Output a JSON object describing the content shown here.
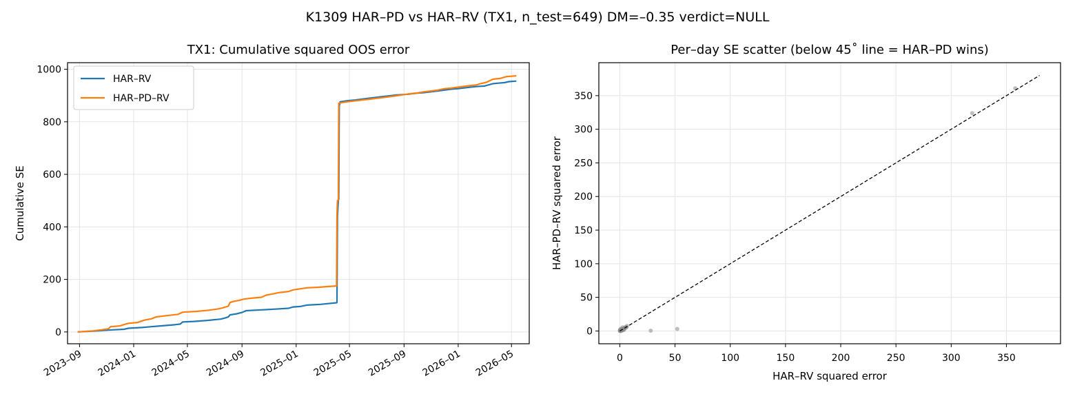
{
  "suptitle": "K1309 HAR–PD vs HAR–RV (TX1, n_test=649)  DM=–0.35  verdict=NULL",
  "chart_data": [
    {
      "type": "line",
      "title": "TX1: Cumulative squared OOS error",
      "xlabel": "",
      "ylabel": "Cumulative SE",
      "x_tick_labels": [
        "2023–09",
        "2024–01",
        "2024–05",
        "2024–09",
        "2025–01",
        "2025–05",
        "2025–09",
        "2026–01",
        "2026–05"
      ],
      "y_ticks": [
        0,
        200,
        400,
        600,
        800,
        1000
      ],
      "xlim": [
        "2023-08-05",
        "2026-06-10"
      ],
      "ylim": [
        -45,
        1025
      ],
      "grid": true,
      "legend": "top-left",
      "series": [
        {
          "name": "HAR–RV",
          "color": "#1f77b4",
          "points": [
            [
              "2023-08-28",
              0
            ],
            [
              "2023-10-01",
              3
            ],
            [
              "2023-11-15",
              8
            ],
            [
              "2023-12-10",
              10
            ],
            [
              "2023-12-20",
              14
            ],
            [
              "2024-01-20",
              17
            ],
            [
              "2024-02-10",
              20
            ],
            [
              "2024-03-01",
              23
            ],
            [
              "2024-04-01",
              27
            ],
            [
              "2024-04-15",
              30
            ],
            [
              "2024-04-20",
              38
            ],
            [
              "2024-05-15",
              40
            ],
            [
              "2024-06-15",
              44
            ],
            [
              "2024-07-15",
              49
            ],
            [
              "2024-07-25",
              53
            ],
            [
              "2024-08-01",
              57
            ],
            [
              "2024-08-05",
              65
            ],
            [
              "2024-08-20",
              69
            ],
            [
              "2024-09-01",
              74
            ],
            [
              "2024-09-10",
              81
            ],
            [
              "2024-10-15",
              84
            ],
            [
              "2024-11-15",
              87
            ],
            [
              "2024-12-15",
              90
            ],
            [
              "2024-12-25",
              95
            ],
            [
              "2025-01-10",
              97
            ],
            [
              "2025-01-25",
              102
            ],
            [
              "2025-02-25",
              105
            ],
            [
              "2025-03-20",
              109
            ],
            [
              "2025-04-02",
              111
            ],
            [
              "2025-04-03",
              112
            ],
            [
              "2025-04-04",
              440
            ],
            [
              "2025-04-06",
              500
            ],
            [
              "2025-04-07",
              505
            ],
            [
              "2025-04-08",
              860
            ],
            [
              "2025-04-10",
              876
            ],
            [
              "2025-04-25",
              880
            ],
            [
              "2025-05-15",
              883
            ],
            [
              "2025-06-15",
              890
            ],
            [
              "2025-07-15",
              896
            ],
            [
              "2025-08-15",
              902
            ],
            [
              "2025-09-10",
              905
            ],
            [
              "2025-10-01",
              909
            ],
            [
              "2025-10-15",
              911
            ],
            [
              "2025-11-15",
              917
            ],
            [
              "2025-12-15",
              924
            ],
            [
              "2026-01-01",
              926
            ],
            [
              "2026-01-20",
              930
            ],
            [
              "2026-02-10",
              934
            ],
            [
              "2026-03-01",
              936
            ],
            [
              "2026-03-20",
              945
            ],
            [
              "2026-04-01",
              947
            ],
            [
              "2026-04-15",
              949
            ],
            [
              "2026-04-25",
              953
            ],
            [
              "2026-05-12",
              955
            ]
          ]
        },
        {
          "name": "HAR–PD–RV",
          "color": "#ff7f0e",
          "points": [
            [
              "2023-08-28",
              0
            ],
            [
              "2023-10-01",
              4
            ],
            [
              "2023-10-20",
              8
            ],
            [
              "2023-11-05",
              12
            ],
            [
              "2023-11-10",
              20
            ],
            [
              "2023-12-01",
              23
            ],
            [
              "2023-12-10",
              28
            ],
            [
              "2023-12-20",
              33
            ],
            [
              "2024-01-10",
              36
            ],
            [
              "2024-01-25",
              45
            ],
            [
              "2024-02-10",
              50
            ],
            [
              "2024-02-20",
              57
            ],
            [
              "2024-03-15",
              62
            ],
            [
              "2024-04-10",
              67
            ],
            [
              "2024-04-20",
              75
            ],
            [
              "2024-05-20",
              78
            ],
            [
              "2024-06-20",
              83
            ],
            [
              "2024-07-10",
              88
            ],
            [
              "2024-07-20",
              92
            ],
            [
              "2024-08-01",
              98
            ],
            [
              "2024-08-05",
              112
            ],
            [
              "2024-08-15",
              117
            ],
            [
              "2024-08-25",
              120
            ],
            [
              "2024-09-05",
              125
            ],
            [
              "2024-09-20",
              128
            ],
            [
              "2024-10-15",
              132
            ],
            [
              "2024-10-25",
              140
            ],
            [
              "2024-11-10",
              145
            ],
            [
              "2024-11-25",
              150
            ],
            [
              "2024-12-15",
              154
            ],
            [
              "2024-12-25",
              160
            ],
            [
              "2025-01-10",
              164
            ],
            [
              "2025-01-25",
              168
            ],
            [
              "2025-02-20",
              170
            ],
            [
              "2025-03-15",
              173
            ],
            [
              "2025-04-02",
              175
            ],
            [
              "2025-04-03",
              440
            ],
            [
              "2025-04-04",
              500
            ],
            [
              "2025-04-06",
              502
            ],
            [
              "2025-04-07",
              870
            ],
            [
              "2025-04-10",
              872
            ],
            [
              "2025-04-25",
              876
            ],
            [
              "2025-05-15",
              880
            ],
            [
              "2025-06-15",
              886
            ],
            [
              "2025-07-15",
              892
            ],
            [
              "2025-08-15",
              899
            ],
            [
              "2025-09-10",
              906
            ],
            [
              "2025-10-01",
              910
            ],
            [
              "2025-10-15",
              914
            ],
            [
              "2025-11-15",
              920
            ],
            [
              "2025-12-01",
              926
            ],
            [
              "2025-12-15",
              928
            ],
            [
              "2026-01-01",
              932
            ],
            [
              "2026-01-20",
              936
            ],
            [
              "2026-02-10",
              940
            ],
            [
              "2026-02-20",
              945
            ],
            [
              "2026-03-05",
              950
            ],
            [
              "2026-03-20",
              962
            ],
            [
              "2026-04-05",
              965
            ],
            [
              "2026-04-20",
              972
            ],
            [
              "2026-05-12",
              975
            ]
          ]
        }
      ]
    },
    {
      "type": "scatter",
      "title": "Per–day SE scatter (below 45˚ line = HAR–PD wins)",
      "xlabel": "HAR–RV squared error",
      "ylabel": "HAR–PD–RV squared error",
      "x_ticks": [
        0,
        50,
        100,
        150,
        200,
        250,
        300,
        350
      ],
      "y_ticks": [
        0,
        50,
        100,
        150,
        200,
        250,
        300,
        350
      ],
      "xlim": [
        -19,
        399
      ],
      "ylim": [
        -19,
        399
      ],
      "grid": true,
      "point_color": "#888888",
      "diagonal_color": "#000000",
      "diagonal": [
        [
          0,
          0
        ],
        [
          380,
          380
        ]
      ],
      "points": [
        [
          0.1,
          0.2
        ],
        [
          0.3,
          0.1
        ],
        [
          0.5,
          0.6
        ],
        [
          0.8,
          0.4
        ],
        [
          1.0,
          1.2
        ],
        [
          1.2,
          0.9
        ],
        [
          1.5,
          1.8
        ],
        [
          2.0,
          1.5
        ],
        [
          2.3,
          2.6
        ],
        [
          0.6,
          1.4
        ],
        [
          1.8,
          0.7
        ],
        [
          2.8,
          3.0
        ],
        [
          3.2,
          2.4
        ],
        [
          3.5,
          4.0
        ],
        [
          0.2,
          2.0
        ],
        [
          1.1,
          3.2
        ],
        [
          4.0,
          3.5
        ],
        [
          4.5,
          5.0
        ],
        [
          5.0,
          4.8
        ],
        [
          5.5,
          6.0
        ],
        [
          6.0,
          5.2
        ],
        [
          6.5,
          7.5
        ],
        [
          2.5,
          5.5
        ],
        [
          3.8,
          1.5
        ],
        [
          0.9,
          0.0
        ],
        [
          0.0,
          0.5
        ],
        [
          1.4,
          2.2
        ],
        [
          2.2,
          0.9
        ],
        [
          28,
          0.5
        ],
        [
          52,
          3
        ],
        [
          319,
          324
        ],
        [
          358,
          361
        ]
      ]
    }
  ]
}
